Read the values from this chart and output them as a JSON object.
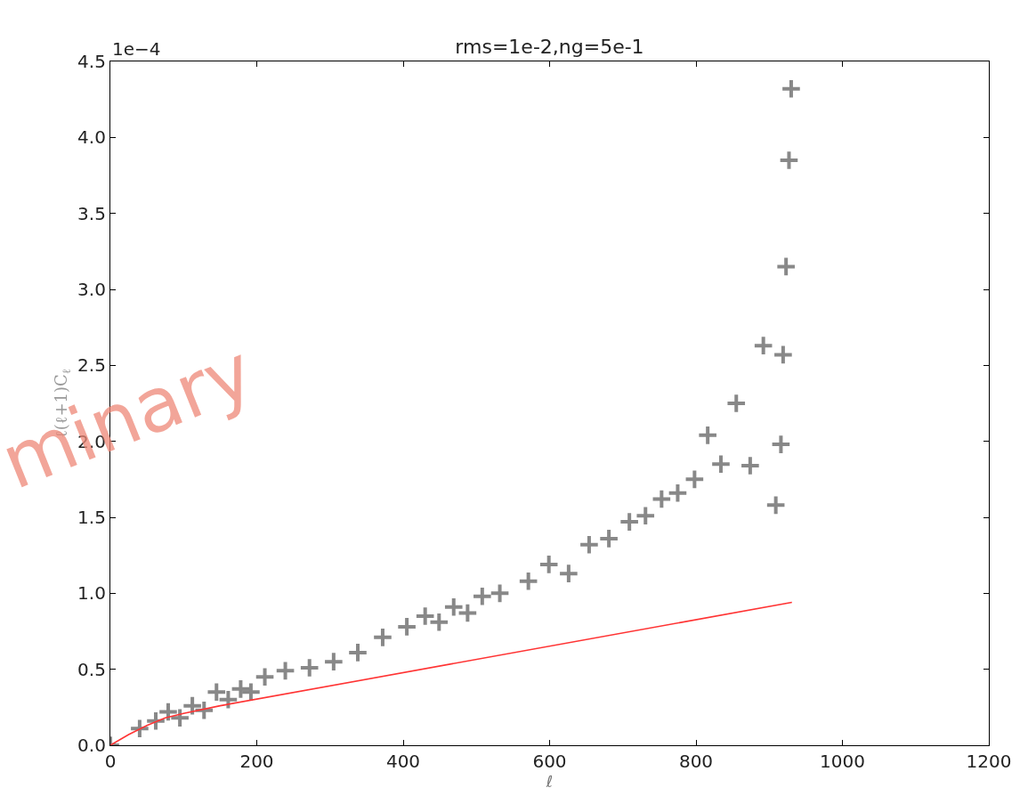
{
  "chart_data": {
    "type": "scatter",
    "title": "rms=1e-2,ng=5e-1",
    "xlabel": "ℓ",
    "ylabel": "ℓ(ℓ+1)C$_{ℓ}$",
    "annotations": [
      "1e−4",
      "minary"
    ],
    "xlim": [
      0,
      1200
    ],
    "xticks": [
      0,
      200,
      400,
      600,
      800,
      1000,
      1200
    ],
    "ylim": [
      0,
      4.5
    ],
    "yticks": [
      {
        "value": 0,
        "label": "0.0"
      },
      0.5,
      {
        "value": 1,
        "label": "1.0"
      },
      1.5,
      {
        "value": 2,
        "label": "2.0"
      },
      2.5,
      {
        "value": 3,
        "label": "3.0"
      },
      3.5,
      {
        "value": 4,
        "label": "4.0"
      },
      4.5
    ],
    "series": [
      {
        "marker": "cross",
        "color": "#888888",
        "x": [
          0,
          40,
          62,
          79,
          95,
          112,
          128,
          145,
          161,
          178,
          192,
          211,
          239,
          272,
          305,
          338,
          372,
          405,
          430,
          449,
          469,
          488,
          508,
          532,
          571,
          599,
          626,
          654,
          681,
          709,
          731,
          753,
          775,
          798,
          816,
          834,
          855,
          874,
          892,
          909,
          916,
          919,
          923,
          927,
          930
        ],
        "values": [
          0,
          0.11,
          0.16,
          0.22,
          0.18,
          0.26,
          0.23,
          0.35,
          0.3,
          0.37,
          0.35,
          0.45,
          0.49,
          0.51,
          0.55,
          0.61,
          0.71,
          0.78,
          0.85,
          0.81,
          0.91,
          0.87,
          0.98,
          1.0,
          1.08,
          1.19,
          1.13,
          1.32,
          1.36,
          1.47,
          1.51,
          1.62,
          1.66,
          1.75,
          2.04,
          1.85,
          2.25,
          1.84,
          2.63,
          1.58,
          1.98,
          2.57,
          3.15,
          3.85,
          4.32
        ]
      },
      {
        "type": "line",
        "line_style": "solid",
        "color": "#ff3333",
        "x": [
          0,
          25,
          50,
          75,
          100,
          150,
          931
        ],
        "values": [
          0,
          0.07,
          0.13,
          0.18,
          0.21,
          0.26,
          0.94
        ]
      }
    ]
  }
}
